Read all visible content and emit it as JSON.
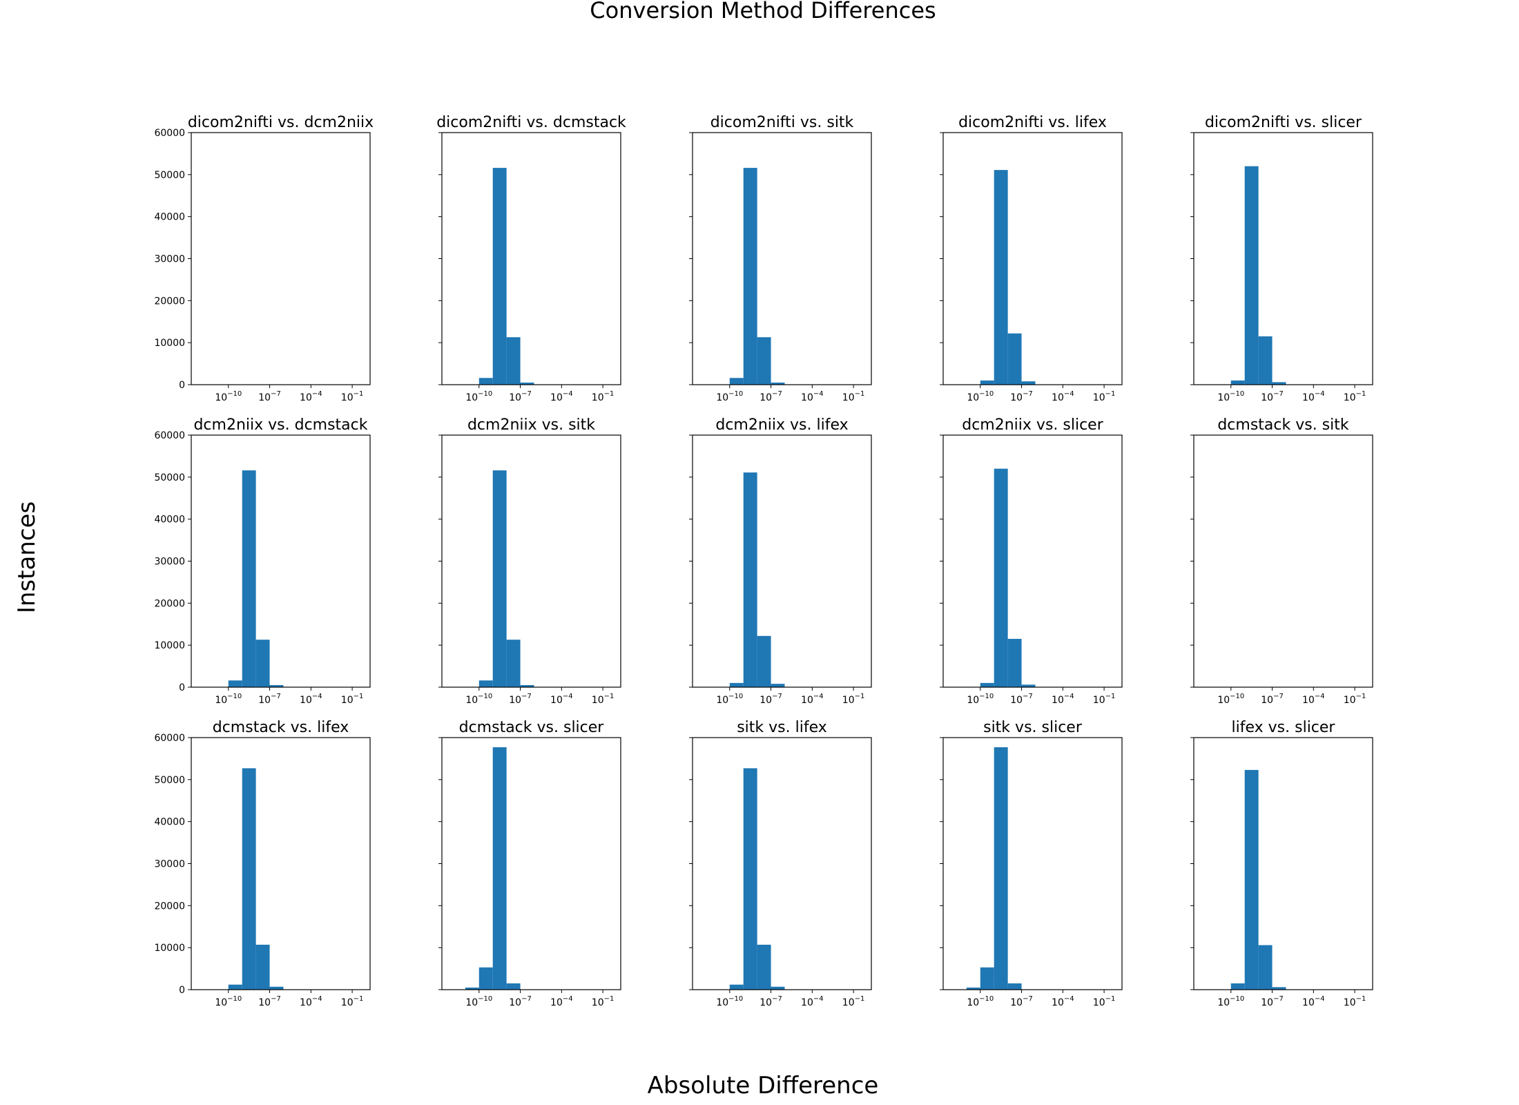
{
  "figure": {
    "title": "Conversion Method Differences",
    "xlabel": "Absolute Difference",
    "ylabel": "Instances"
  },
  "chart_data": [
    {
      "type": "bar",
      "title": "dicom2nifti vs. dcm2niix",
      "bins": [],
      "xscale": "log",
      "ylim": [
        0,
        60000
      ]
    },
    {
      "type": "bar",
      "title": "dicom2nifti vs. dcmstack",
      "bins": [
        [
          -11,
          -10,
          60
        ],
        [
          -10,
          -9,
          1600
        ],
        [
          -9,
          -8,
          51600
        ],
        [
          -8,
          -7,
          11300
        ],
        [
          -7,
          -6,
          500
        ]
      ],
      "xscale": "log",
      "ylim": [
        0,
        60000
      ]
    },
    {
      "type": "bar",
      "title": "dicom2nifti vs. sitk",
      "bins": [
        [
          -11,
          -10,
          60
        ],
        [
          -10,
          -9,
          1600
        ],
        [
          -9,
          -8,
          51600
        ],
        [
          -8,
          -7,
          11300
        ],
        [
          -7,
          -6,
          500
        ]
      ],
      "xscale": "log",
      "ylim": [
        0,
        60000
      ]
    },
    {
      "type": "bar",
      "title": "dicom2nifti vs. lifex",
      "bins": [
        [
          -11,
          -10,
          50
        ],
        [
          -10,
          -9,
          1000
        ],
        [
          -9,
          -8,
          51100
        ],
        [
          -8,
          -7,
          12200
        ],
        [
          -7,
          -6,
          800
        ]
      ],
      "xscale": "log",
      "ylim": [
        0,
        60000
      ]
    },
    {
      "type": "bar",
      "title": "dicom2nifti vs. slicer",
      "bins": [
        [
          -11,
          -10,
          50
        ],
        [
          -10,
          -9,
          1000
        ],
        [
          -9,
          -8,
          52000
        ],
        [
          -8,
          -7,
          11500
        ],
        [
          -7,
          -6,
          600
        ]
      ],
      "xscale": "log",
      "ylim": [
        0,
        60000
      ]
    },
    {
      "type": "bar",
      "title": "dcm2niix vs. dcmstack",
      "bins": [
        [
          -11,
          -10,
          60
        ],
        [
          -10,
          -9,
          1600
        ],
        [
          -9,
          -8,
          51600
        ],
        [
          -8,
          -7,
          11300
        ],
        [
          -7,
          -6,
          500
        ]
      ],
      "xscale": "log",
      "ylim": [
        0,
        60000
      ]
    },
    {
      "type": "bar",
      "title": "dcm2niix vs. sitk",
      "bins": [
        [
          -11,
          -10,
          60
        ],
        [
          -10,
          -9,
          1600
        ],
        [
          -9,
          -8,
          51600
        ],
        [
          -8,
          -7,
          11300
        ],
        [
          -7,
          -6,
          500
        ]
      ],
      "xscale": "log",
      "ylim": [
        0,
        60000
      ]
    },
    {
      "type": "bar",
      "title": "dcm2niix vs. lifex",
      "bins": [
        [
          -11,
          -10,
          50
        ],
        [
          -10,
          -9,
          1000
        ],
        [
          -9,
          -8,
          51100
        ],
        [
          -8,
          -7,
          12200
        ],
        [
          -7,
          -6,
          800
        ]
      ],
      "xscale": "log",
      "ylim": [
        0,
        60000
      ]
    },
    {
      "type": "bar",
      "title": "dcm2niix vs. slicer",
      "bins": [
        [
          -11,
          -10,
          50
        ],
        [
          -10,
          -9,
          1000
        ],
        [
          -9,
          -8,
          52000
        ],
        [
          -8,
          -7,
          11500
        ],
        [
          -7,
          -6,
          600
        ]
      ],
      "xscale": "log",
      "ylim": [
        0,
        60000
      ]
    },
    {
      "type": "bar",
      "title": "dcmstack vs. sitk",
      "bins": [],
      "xscale": "log",
      "ylim": [
        0,
        60000
      ]
    },
    {
      "type": "bar",
      "title": "dcmstack vs. lifex",
      "bins": [
        [
          -11,
          -10,
          60
        ],
        [
          -10,
          -9,
          1200
        ],
        [
          -9,
          -8,
          52700
        ],
        [
          -8,
          -7,
          10700
        ],
        [
          -7,
          -6,
          700
        ]
      ],
      "xscale": "log",
      "ylim": [
        0,
        60000
      ]
    },
    {
      "type": "bar",
      "title": "dcmstack vs. slicer",
      "bins": [
        [
          -11,
          -10,
          500
        ],
        [
          -10,
          -9,
          5300
        ],
        [
          -9,
          -8,
          57700
        ],
        [
          -8,
          -7,
          1500
        ],
        [
          -7,
          -6,
          60
        ]
      ],
      "xscale": "log",
      "ylim": [
        0,
        60000
      ]
    },
    {
      "type": "bar",
      "title": "sitk vs. lifex",
      "bins": [
        [
          -11,
          -10,
          60
        ],
        [
          -10,
          -9,
          1200
        ],
        [
          -9,
          -8,
          52700
        ],
        [
          -8,
          -7,
          10700
        ],
        [
          -7,
          -6,
          700
        ]
      ],
      "xscale": "log",
      "ylim": [
        0,
        60000
      ]
    },
    {
      "type": "bar",
      "title": "sitk vs. slicer",
      "bins": [
        [
          -11,
          -10,
          500
        ],
        [
          -10,
          -9,
          5300
        ],
        [
          -9,
          -8,
          57700
        ],
        [
          -8,
          -7,
          1500
        ],
        [
          -7,
          -6,
          60
        ]
      ],
      "xscale": "log",
      "ylim": [
        0,
        60000
      ]
    },
    {
      "type": "bar",
      "title": "lifex vs. slicer",
      "bins": [
        [
          -11,
          -10,
          50
        ],
        [
          -10,
          -9,
          1500
        ],
        [
          -9,
          -8,
          52300
        ],
        [
          -8,
          -7,
          10600
        ],
        [
          -7,
          -6,
          600
        ]
      ],
      "xscale": "log",
      "ylim": [
        0,
        60000
      ]
    }
  ],
  "axes": {
    "xticks": [
      {
        "exp": -10,
        "base": "10",
        "sup": "−10"
      },
      {
        "exp": -7,
        "base": "10",
        "sup": "−7"
      },
      {
        "exp": -4,
        "base": "10",
        "sup": "−4"
      },
      {
        "exp": -1,
        "base": "10",
        "sup": "−1"
      }
    ],
    "yticks": [
      0,
      10000,
      20000,
      30000,
      40000,
      50000,
      60000
    ],
    "ytick_labels": [
      "0",
      "10000",
      "20000",
      "30000",
      "40000",
      "50000",
      "60000"
    ],
    "xlim_log": [
      -12.7,
      0.3
    ],
    "bar_color": "#1f77b4"
  }
}
